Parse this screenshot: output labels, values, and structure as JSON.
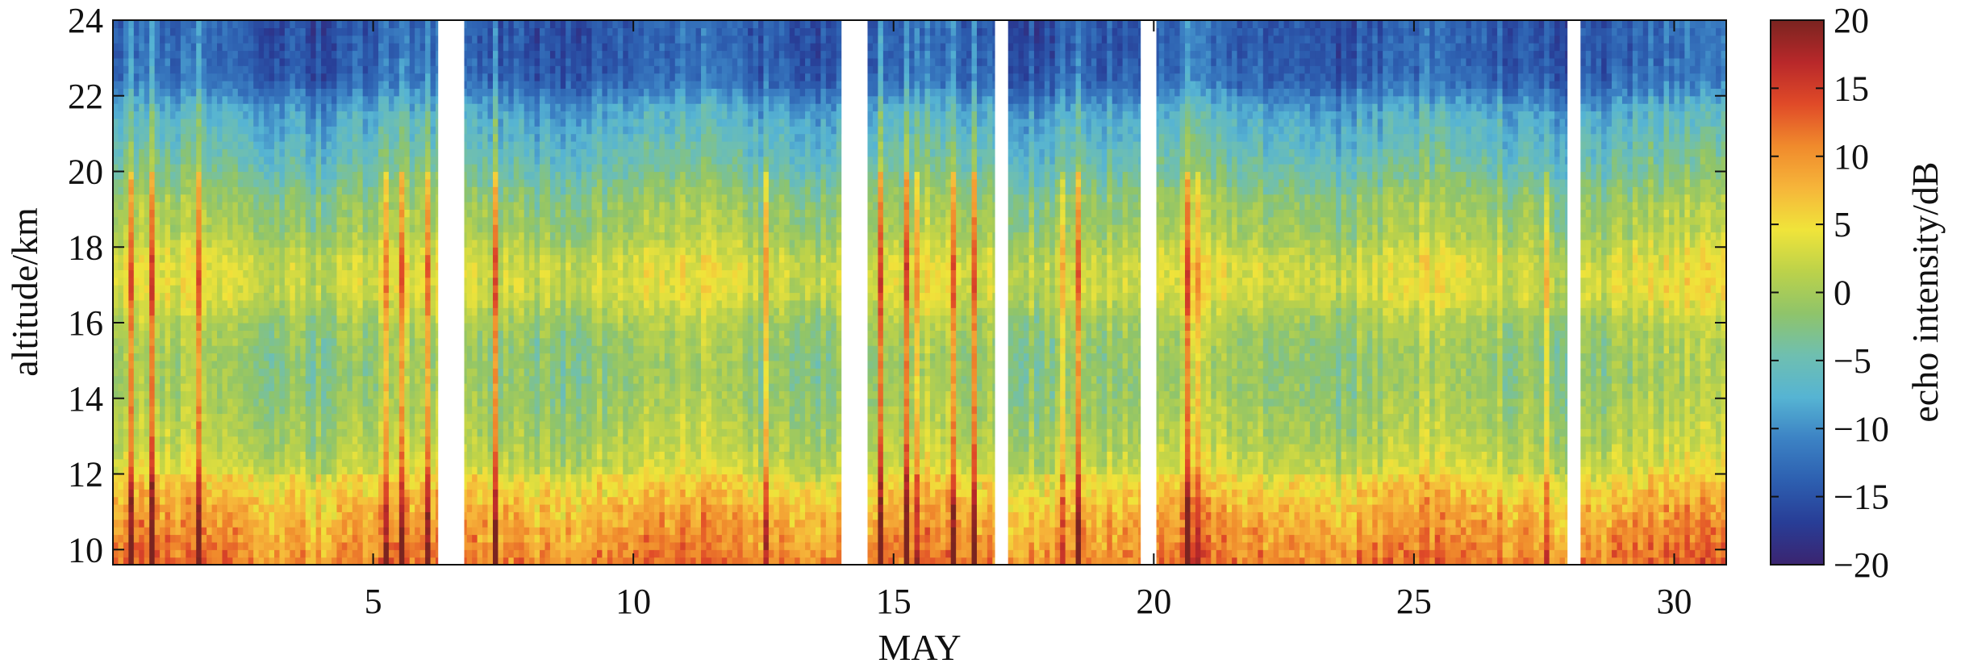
{
  "chart_data": {
    "type": "heatmap",
    "title": "",
    "xlabel": "MAY",
    "ylabel": "altitude/km",
    "colorbar_label": "echo intensity/dB",
    "xlim": [
      0.0,
      31.0
    ],
    "ylim": [
      9.6,
      24
    ],
    "xticks": [
      5,
      10,
      15,
      20,
      25,
      30
    ],
    "xtick_labels": [
      "5",
      "10",
      "15",
      "20",
      "25",
      "30"
    ],
    "yticks": [
      10,
      12,
      14,
      16,
      18,
      20,
      22,
      24
    ],
    "ytick_labels": [
      "10",
      "12",
      "14",
      "16",
      "18",
      "20",
      "22",
      "24"
    ],
    "clim": [
      -20,
      20
    ],
    "cticks": [
      -20,
      -15,
      -10,
      -5,
      0,
      5,
      10,
      15,
      20
    ],
    "ctick_labels": [
      "−20",
      "−15",
      "−10",
      "−5",
      "0",
      "5",
      "10",
      "15",
      "20"
    ],
    "colormap": "jet",
    "grid": false,
    "missing_data_gaps": [
      [
        6.25,
        6.75
      ],
      [
        14.0,
        14.5
      ],
      [
        16.95,
        17.2
      ],
      [
        19.75,
        20.05
      ],
      [
        27.95,
        28.2
      ]
    ],
    "altitude_profile": {
      "altitude_km": [
        9.6,
        10.4,
        11.2,
        12.0,
        12.8,
        13.6,
        14.4,
        15.2,
        16.0,
        16.8,
        17.6,
        18.4,
        19.2,
        20.0,
        20.8,
        21.6,
        22.4,
        23.2,
        24.0
      ],
      "typical_dB": [
        10,
        8,
        6,
        3,
        1,
        0,
        -1,
        -1,
        0,
        3,
        3,
        0,
        -1,
        -4,
        -6,
        -8,
        -13,
        -14,
        -14
      ]
    }
  },
  "colors": {
    "jet_stops": [
      "#3b2470",
      "#283d96",
      "#2d5fb0",
      "#3c82c4",
      "#56b4d3",
      "#6fbfb0",
      "#8fc46a",
      "#bcd24a",
      "#f0e43a",
      "#f6b53a",
      "#f08a2c",
      "#e04a28",
      "#b8282a",
      "#7a2420"
    ],
    "axis": "#111111",
    "background": "#ffffff"
  }
}
